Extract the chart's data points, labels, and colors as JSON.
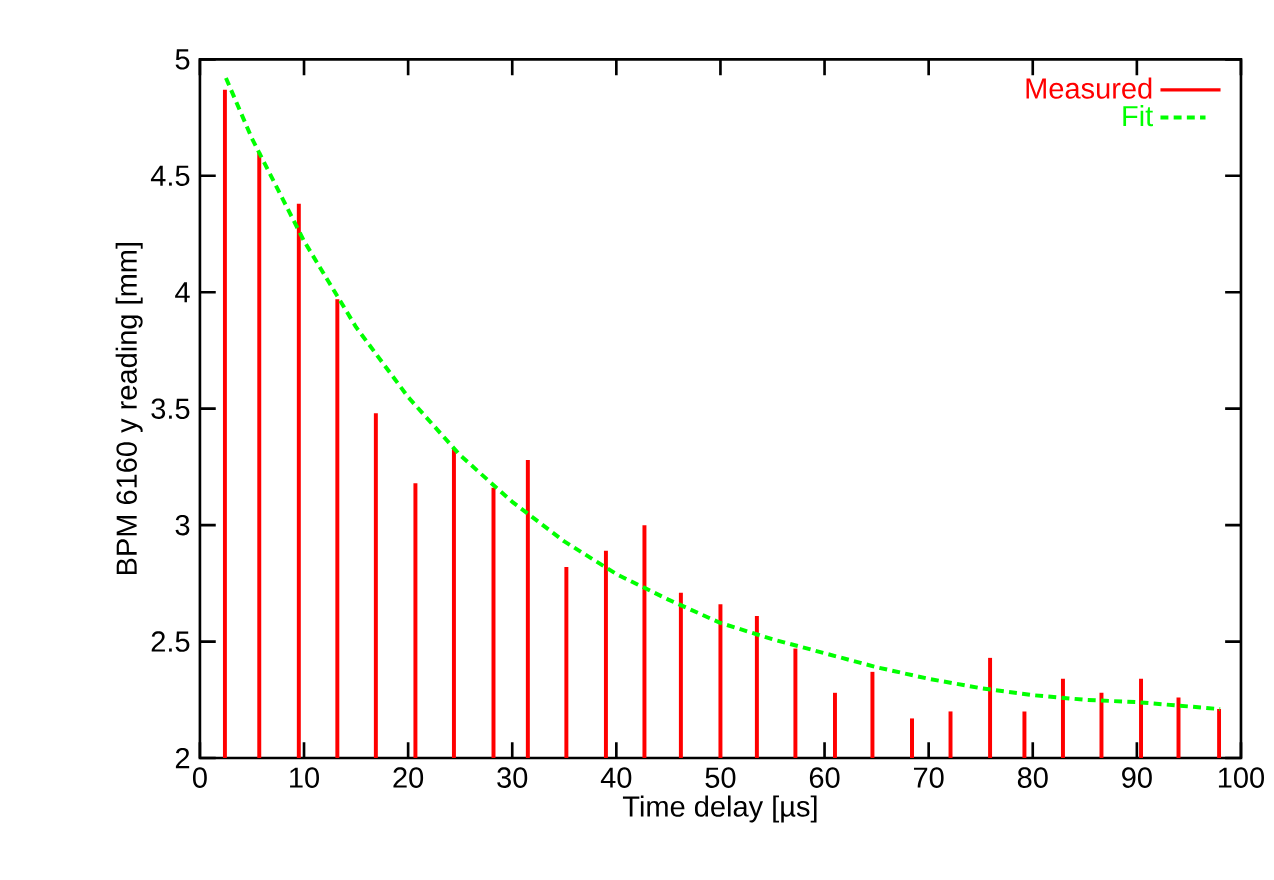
{
  "chart_data": {
    "type": "bar",
    "xlabel": "Time delay [µs]",
    "ylabel": "BPM 6160 y reading [mm]",
    "xlim": [
      0,
      100
    ],
    "xticks": [
      0,
      10,
      20,
      30,
      40,
      50,
      60,
      70,
      80,
      90,
      100
    ],
    "ylim": [
      2,
      5
    ],
    "yticks": [
      2,
      2.5,
      3,
      3.5,
      4,
      4.5,
      5
    ],
    "legend": "top right",
    "grid": false,
    "series": [
      {
        "name": "Measured",
        "color": "#ff0000",
        "x": [
          2.4,
          5.7,
          9.5,
          13.2,
          16.9,
          20.7,
          24.4,
          28.2,
          31.5,
          35.2,
          39.0,
          42.7,
          46.2,
          50.0,
          53.5,
          57.2,
          61.0,
          64.6,
          68.4,
          72.1,
          75.9,
          79.2,
          82.9,
          86.6,
          90.4,
          94.0,
          97.9
        ],
        "values": [
          4.87,
          4.6,
          4.38,
          3.97,
          3.48,
          3.18,
          3.33,
          3.16,
          3.28,
          2.82,
          2.89,
          3.0,
          2.71,
          2.66,
          2.61,
          2.47,
          2.28,
          2.37,
          2.17,
          2.2,
          2.43,
          2.2,
          2.34,
          2.28,
          2.34,
          2.26,
          2.21
        ]
      },
      {
        "name": "Fit",
        "type": "line",
        "line_style": "dashed",
        "color": "#00ff00",
        "x": [
          2.5,
          5,
          10,
          15,
          20,
          25,
          30,
          35,
          40,
          45,
          50,
          55,
          60,
          65,
          70,
          75,
          80,
          85,
          90,
          98
        ],
        "values": [
          4.92,
          4.66,
          4.22,
          3.85,
          3.55,
          3.3,
          3.1,
          2.93,
          2.79,
          2.68,
          2.58,
          2.51,
          2.45,
          2.39,
          2.34,
          2.3,
          2.27,
          2.25,
          2.24,
          2.21
        ]
      }
    ]
  }
}
